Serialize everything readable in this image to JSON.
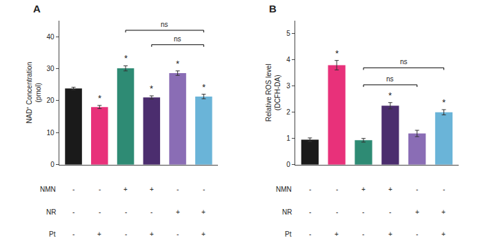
{
  "chart_data": [
    {
      "type": "bar",
      "title": "A",
      "y_label": "NAD⁺ Concentration\n(pmol)",
      "categories": [
        null,
        null,
        null,
        null,
        null,
        null
      ],
      "values": [
        23.8,
        18.0,
        30.1,
        21.0,
        28.6,
        21.3
      ],
      "errors": [
        0.4,
        0.5,
        0.8,
        0.5,
        0.7,
        0.7
      ],
      "colors": [
        "#1a1a1a",
        "#e8317a",
        "#2e8b74",
        "#4b2d6e",
        "#8a6db5",
        "#6ab4d8"
      ],
      "stars": [
        null,
        "*",
        "*",
        "*",
        "*",
        "*"
      ],
      "sig_bars": [
        {
          "x1": 2,
          "x2": 5,
          "y": 42.0,
          "label": "ns"
        },
        {
          "x1": 3,
          "x2": 5,
          "y": 37.5,
          "label": "ns"
        }
      ],
      "table_rows": [
        {
          "label": "NMN",
          "cells": [
            "-",
            "-",
            "+",
            "+",
            "-",
            "-"
          ]
        },
        {
          "label": "NR",
          "cells": [
            "-",
            "-",
            "-",
            "-",
            "+",
            "+"
          ]
        },
        {
          "label": "Pt",
          "cells": [
            "-",
            "+",
            "-",
            "+",
            "-",
            "+"
          ]
        }
      ],
      "ylim": [
        0,
        45
      ],
      "yticks": [
        0,
        10,
        20,
        30,
        40
      ],
      "grid": false,
      "tick_labels": "y"
    },
    {
      "type": "bar",
      "title": "B",
      "y_label": "Relative ROS level\n(DCFH-DA)",
      "categories": [
        null,
        null,
        null,
        null,
        null,
        null
      ],
      "values": [
        0.95,
        3.8,
        0.93,
        2.25,
        1.19,
        2.0
      ],
      "errors": [
        0.07,
        0.18,
        0.07,
        0.12,
        0.12,
        0.1
      ],
      "colors": [
        "#1a1a1a",
        "#e8317a",
        "#2e8b74",
        "#4b2d6e",
        "#8a6db5",
        "#6ab4d8"
      ],
      "stars": [
        null,
        "*",
        null,
        "*",
        null,
        "*"
      ],
      "sig_bars": [
        {
          "x1": 2,
          "x2": 4,
          "y": 3.05,
          "label": "ns"
        },
        {
          "x1": 2,
          "x2": 5,
          "y": 3.7,
          "label": "ns"
        }
      ],
      "table_rows": [
        {
          "label": "NMN",
          "cells": [
            "-",
            "-",
            "+",
            "+",
            "-",
            "-"
          ]
        },
        {
          "label": "NR",
          "cells": [
            "-",
            "-",
            "-",
            "-",
            "+",
            "+"
          ]
        },
        {
          "label": "Pt",
          "cells": [
            "-",
            "+",
            "-",
            "+",
            "-",
            "+"
          ]
        }
      ],
      "ylim": [
        0,
        5.5
      ],
      "yticks": [
        0,
        1,
        2,
        3,
        4,
        5
      ],
      "grid": false,
      "tick_labels": "y"
    }
  ]
}
